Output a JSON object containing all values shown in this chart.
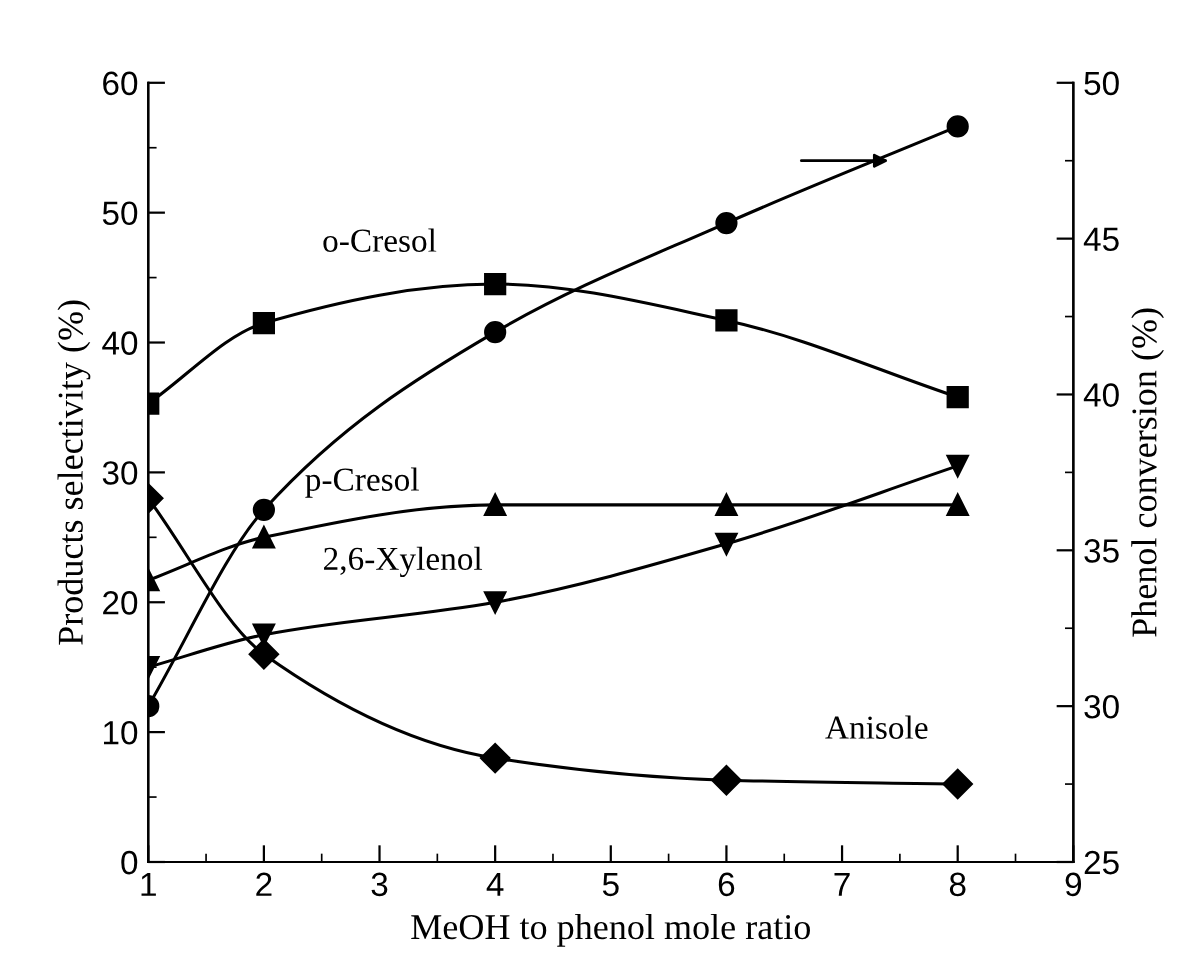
{
  "chart_data": {
    "type": "line",
    "xlabel": "MeOH to phenol mole ratio",
    "ylabel": "Products selectivity (%)",
    "y2label": "Phenol conversion (%)",
    "x": [
      1,
      2,
      4,
      6,
      8
    ],
    "series": [
      {
        "name": "o-Cresol",
        "color": "#000000",
        "marker": "square",
        "values": [
          35.3,
          41.5,
          44.5,
          41.7,
          35.8
        ]
      },
      {
        "name": "p-Cresol",
        "color": "#000000",
        "marker": "triangle",
        "values": [
          21.7,
          25,
          27.5,
          27.5,
          27.5
        ]
      },
      {
        "name": "2,6-Xylenol",
        "color": "#000000",
        "marker": "triangle_down",
        "values": [
          15,
          17.5,
          20,
          24.5,
          30.5
        ]
      },
      {
        "name": "Anisole",
        "color": "#000000",
        "marker": "diamond",
        "values": [
          28,
          16,
          8,
          6.3,
          6
        ]
      },
      {
        "color": "#000000",
        "marker": "circle",
        "axis": "y2",
        "values": [
          30,
          36.3,
          42,
          45.5,
          48.6
        ]
      }
    ],
    "xlim": [
      1,
      9
    ],
    "xticks": [
      1,
      2,
      3,
      4,
      5,
      6,
      7,
      8,
      9
    ],
    "ylim": [
      0,
      60
    ],
    "yticks": [
      0,
      10,
      20,
      30,
      40,
      50,
      60
    ],
    "y2lim": [
      25,
      50
    ],
    "y2ticks": [
      25,
      30,
      35,
      40,
      45,
      50
    ],
    "grid": false,
    "legend": false,
    "line_style": "solid"
  }
}
